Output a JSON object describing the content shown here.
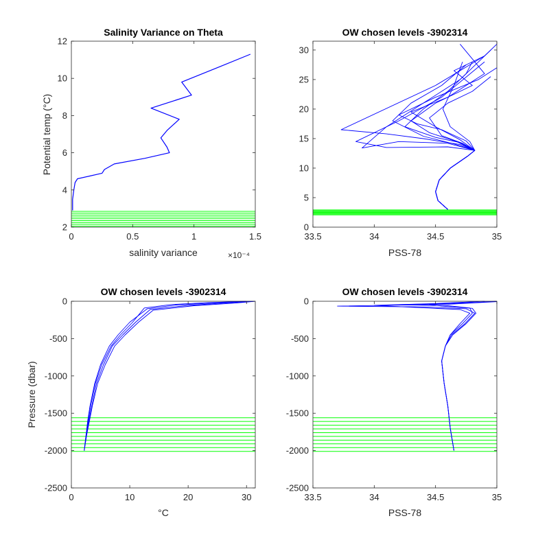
{
  "chart_data": [
    {
      "type": "line",
      "title": "Salinity Variance on Theta",
      "xlabel": "salinity variance",
      "ylabel": "Potential temp (°C)",
      "x_exponent_label": "×10⁻⁴",
      "xlim": [
        0,
        1.5
      ],
      "ylim": [
        2,
        12
      ],
      "xticks": [
        0,
        0.5,
        1,
        1.5
      ],
      "xtick_labels": [
        "0",
        "0.5",
        "1",
        "1.5"
      ],
      "yticks": [
        2,
        4,
        6,
        8,
        10,
        12
      ],
      "ytick_labels": [
        "2",
        "4",
        "6",
        "8",
        "10",
        "12"
      ],
      "line_color": "#0000ff",
      "level_color": "#00ff00",
      "series": [
        {
          "x": [
            0.01,
            0.01,
            0.02,
            0.03,
            0.05,
            0.15,
            0.25,
            0.27,
            0.35,
            0.6,
            0.8,
            0.78,
            0.73,
            0.78,
            0.88,
            0.65,
            0.98,
            0.9,
            1.2,
            1.46
          ],
          "y": [
            2.9,
            3.5,
            4.0,
            4.4,
            4.6,
            4.75,
            4.9,
            5.1,
            5.4,
            5.7,
            6.0,
            6.3,
            6.8,
            7.2,
            7.8,
            8.4,
            9.1,
            9.8,
            10.6,
            11.3
          ]
        }
      ],
      "levels": [
        2.05,
        2.15,
        2.25,
        2.35,
        2.45,
        2.55,
        2.65,
        2.75,
        2.85
      ]
    },
    {
      "type": "line",
      "title": "OW chosen levels -3902314",
      "xlabel": "PSS-78",
      "ylabel": "",
      "xlim": [
        33.5,
        35
      ],
      "ylim": [
        0,
        31.5
      ],
      "xticks": [
        33.5,
        34,
        34.5,
        35
      ],
      "xtick_labels": [
        "33.5",
        "34",
        "34.5",
        "35"
      ],
      "yticks": [
        0,
        5,
        10,
        15,
        20,
        25,
        30
      ],
      "ytick_labels": [
        "0",
        "5",
        "10",
        "15",
        "20",
        "25",
        "30"
      ],
      "line_color": "#0000ff",
      "level_color": "#00ff00",
      "series": [
        {
          "x": [
            34.6,
            34.52,
            34.5,
            34.53,
            34.62,
            34.76,
            34.82,
            34.78,
            34.62,
            34.56,
            34.65,
            34.72
          ],
          "y": [
            3,
            4.5,
            6,
            8,
            10,
            12,
            13,
            14.5,
            17,
            20,
            24,
            28
          ]
        },
        {
          "x": [
            34.6,
            34.52,
            34.5,
            34.53,
            34.62,
            34.76,
            34.82,
            34.7,
            34.4,
            34.1,
            33.73,
            34.5,
            34.9,
            35.0
          ],
          "y": [
            3,
            4.5,
            6,
            8,
            10,
            12,
            13,
            14,
            15,
            15.8,
            16.5,
            24,
            29,
            31
          ]
        },
        {
          "x": [
            34.6,
            34.52,
            34.5,
            34.53,
            34.62,
            34.76,
            34.82,
            34.6,
            34.2,
            33.9,
            34.1,
            34.4,
            34.7,
            34.95
          ],
          "y": [
            3,
            4.5,
            6,
            8,
            10,
            12,
            13,
            14.2,
            14.5,
            13.4,
            17,
            21,
            25,
            30
          ]
        },
        {
          "x": [
            34.6,
            34.52,
            34.5,
            34.53,
            34.62,
            34.76,
            34.82,
            34.7,
            34.45,
            34.3,
            34.5,
            34.8,
            34.65,
            34.9
          ],
          "y": [
            3,
            4.5,
            6,
            8,
            10,
            12,
            13,
            14.3,
            16,
            18,
            21,
            24,
            26.5,
            29
          ]
        },
        {
          "x": [
            34.6,
            34.52,
            34.5,
            34.53,
            34.62,
            34.76,
            34.82,
            34.75,
            34.55,
            34.35,
            34.2,
            34.5,
            34.85,
            35.0
          ],
          "y": [
            3,
            4.5,
            6,
            8,
            10,
            12,
            13,
            14.6,
            16.5,
            17.5,
            19,
            22,
            25,
            27
          ]
        },
        {
          "x": [
            34.6,
            34.52,
            34.5,
            34.53,
            34.62,
            34.76,
            34.82,
            34.68,
            34.5,
            34.25,
            34.4,
            34.6,
            34.75,
            34.8
          ],
          "y": [
            3,
            4.5,
            6,
            8,
            10,
            12,
            13,
            14.4,
            15.2,
            17,
            20,
            23,
            26,
            28
          ]
        },
        {
          "x": [
            34.6,
            34.52,
            34.5,
            34.53,
            34.62,
            34.76,
            34.82,
            34.72,
            34.55,
            34.45,
            34.6,
            34.8,
            34.95
          ],
          "y": [
            3,
            4.5,
            6,
            8,
            10,
            12,
            13,
            14.2,
            15.5,
            18.5,
            21,
            23,
            25.5
          ]
        },
        {
          "x": [
            34.6,
            34.52,
            34.5,
            34.53,
            34.62,
            34.76,
            34.82,
            34.65,
            34.4,
            34.15,
            34.3,
            34.55,
            34.75
          ],
          "y": [
            3,
            4.5,
            6,
            8,
            10,
            12,
            13,
            14.1,
            15.4,
            18,
            21,
            24,
            27.5
          ]
        },
        {
          "x": [
            34.6,
            34.52,
            34.5,
            34.53,
            34.62,
            34.76,
            34.82,
            34.7,
            34.5,
            34.3,
            34.6,
            34.9,
            34.7
          ],
          "y": [
            3,
            4.5,
            6,
            8,
            10,
            12,
            13,
            14.8,
            17,
            19.5,
            22,
            26,
            31
          ]
        },
        {
          "x": [
            34.6,
            34.52,
            34.5,
            34.53,
            34.62,
            34.76,
            34.82,
            34.6,
            34.1,
            33.85,
            34.2,
            34.55,
            34.9
          ],
          "y": [
            3,
            4.5,
            6,
            8,
            10,
            12,
            13,
            13.6,
            13.5,
            14.5,
            18,
            22,
            28
          ]
        }
      ],
      "levels": [
        2.1,
        2.3,
        2.5,
        2.7,
        2.9
      ]
    },
    {
      "type": "line",
      "title": "OW chosen levels -3902314",
      "xlabel": "°C",
      "ylabel": "Pressure (dbar)",
      "xlim": [
        0,
        31.5
      ],
      "ylim": [
        -2500,
        0
      ],
      "xticks": [
        0,
        10,
        20,
        30
      ],
      "xtick_labels": [
        "0",
        "10",
        "20",
        "30"
      ],
      "yticks": [
        -2500,
        -2000,
        -1500,
        -1000,
        -500,
        0
      ],
      "ytick_labels": [
        "-2500",
        "-2000",
        "-1500",
        "-1000",
        "-500",
        "0"
      ],
      "line_color": "#0000ff",
      "level_color": "#00ff00",
      "series": [
        {
          "x": [
            2.2,
            2.5,
            2.8,
            3.2,
            4,
            5,
            6.5,
            8,
            10,
            13,
            18,
            24,
            31
          ],
          "y": [
            -2000,
            -1800,
            -1600,
            -1400,
            -1100,
            -850,
            -600,
            -450,
            -280,
            -100,
            -50,
            -25,
            0
          ]
        },
        {
          "x": [
            2.2,
            2.6,
            3.0,
            3.5,
            4.3,
            5.5,
            7,
            8.8,
            11,
            13.5,
            20,
            27,
            31.5
          ],
          "y": [
            -2000,
            -1800,
            -1600,
            -1400,
            -1100,
            -850,
            -600,
            -450,
            -280,
            -110,
            -55,
            -20,
            0
          ]
        },
        {
          "x": [
            2.2,
            2.5,
            2.9,
            3.3,
            4.1,
            5.2,
            6.8,
            8.4,
            10.5,
            12.5,
            17,
            23,
            30
          ],
          "y": [
            -2000,
            -1800,
            -1600,
            -1400,
            -1100,
            -850,
            -600,
            -450,
            -280,
            -90,
            -45,
            -20,
            0
          ]
        },
        {
          "x": [
            2.2,
            2.6,
            3.1,
            3.6,
            4.5,
            5.8,
            7.4,
            9.2,
            11.5,
            14,
            21,
            28,
            31.5
          ],
          "y": [
            -2000,
            -1800,
            -1600,
            -1400,
            -1100,
            -850,
            -600,
            -450,
            -280,
            -120,
            -60,
            -25,
            0
          ]
        }
      ],
      "levels": [
        -1560,
        -1610,
        -1660,
        -1710,
        -1760,
        -1810,
        -1860,
        -1910,
        -1960,
        -2010
      ]
    },
    {
      "type": "line",
      "title": "OW chosen levels -3902314",
      "xlabel": "PSS-78",
      "ylabel": "",
      "xlim": [
        33.5,
        35
      ],
      "ylim": [
        -2500,
        0
      ],
      "xticks": [
        33.5,
        34,
        34.5,
        35
      ],
      "xtick_labels": [
        "33.5",
        "34",
        "34.5",
        "35"
      ],
      "yticks": [
        -2500,
        -2000,
        -1500,
        -1000,
        -500,
        0
      ],
      "ytick_labels": [
        "-2500",
        "-2000",
        "-1500",
        "-1000",
        "-500",
        "0"
      ],
      "line_color": "#0000ff",
      "level_color": "#00ff00",
      "series": [
        {
          "x": [
            34.65,
            34.62,
            34.6,
            34.57,
            34.55,
            34.58,
            34.62,
            34.72,
            34.8,
            34.78,
            34.6,
            34.2,
            34.8,
            35.0
          ],
          "y": [
            -2000,
            -1700,
            -1400,
            -1100,
            -800,
            -600,
            -450,
            -300,
            -160,
            -90,
            -60,
            -45,
            -20,
            0
          ]
        },
        {
          "x": [
            34.65,
            34.62,
            34.6,
            34.57,
            34.55,
            34.58,
            34.63,
            34.74,
            34.82,
            34.75,
            34.4,
            33.7,
            34.6,
            35.0
          ],
          "y": [
            -2000,
            -1700,
            -1400,
            -1100,
            -800,
            -600,
            -450,
            -300,
            -160,
            -100,
            -75,
            -65,
            -40,
            -5
          ]
        },
        {
          "x": [
            34.65,
            34.62,
            34.6,
            34.57,
            34.55,
            34.58,
            34.62,
            34.7,
            34.78,
            34.7,
            34.3,
            34.0,
            34.5,
            34.9
          ],
          "y": [
            -2000,
            -1700,
            -1400,
            -1100,
            -800,
            -600,
            -450,
            -300,
            -160,
            -110,
            -80,
            -55,
            -30,
            0
          ]
        },
        {
          "x": [
            34.65,
            34.62,
            34.6,
            34.57,
            34.55,
            34.58,
            34.64,
            34.75,
            34.83,
            34.8,
            34.55,
            34.45,
            34.85,
            35.0
          ],
          "y": [
            -2000,
            -1700,
            -1400,
            -1100,
            -800,
            -600,
            -450,
            -300,
            -160,
            -95,
            -65,
            -40,
            -15,
            0
          ]
        }
      ],
      "levels": [
        -1560,
        -1610,
        -1660,
        -1710,
        -1760,
        -1810,
        -1860,
        -1910,
        -1960,
        -2010
      ]
    }
  ]
}
